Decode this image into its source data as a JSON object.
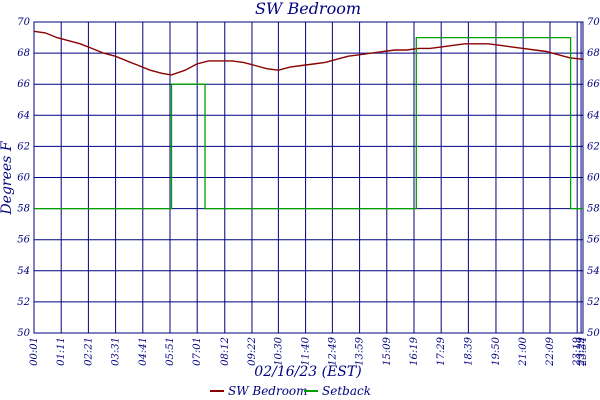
{
  "chart_data": {
    "type": "line",
    "title": "SW Bedroom",
    "xlabel": "02/16/23 (EST)",
    "ylabel": "Degrees F",
    "ylim": [
      50,
      70
    ],
    "yticks": [
      50,
      52,
      54,
      56,
      58,
      60,
      62,
      64,
      66,
      68,
      70
    ],
    "x_start": "00:01",
    "x_end": "23:34",
    "xticks": [
      "00:01",
      "01:11",
      "02:21",
      "03:31",
      "04:41",
      "05:51",
      "07:01",
      "08:12",
      "09:22",
      "10:30",
      "11:40",
      "12:49",
      "13:59",
      "15:09",
      "16:19",
      "17:29",
      "18:39",
      "19:50",
      "21:00",
      "22:09",
      "23:19",
      "23:29",
      "23:34"
    ],
    "grid": true,
    "legend_position": "bottom",
    "series": [
      {
        "name": "SW Bedroom",
        "color": "#8b0000",
        "points": [
          [
            "00:01",
            69.4
          ],
          [
            "00:30",
            69.3
          ],
          [
            "01:00",
            69.0
          ],
          [
            "01:30",
            68.8
          ],
          [
            "02:00",
            68.6
          ],
          [
            "02:30",
            68.3
          ],
          [
            "03:00",
            68.0
          ],
          [
            "03:30",
            67.8
          ],
          [
            "04:00",
            67.5
          ],
          [
            "04:30",
            67.2
          ],
          [
            "05:00",
            66.9
          ],
          [
            "05:30",
            66.7
          ],
          [
            "05:55",
            66.6
          ],
          [
            "06:30",
            66.9
          ],
          [
            "07:00",
            67.3
          ],
          [
            "07:30",
            67.5
          ],
          [
            "08:00",
            67.5
          ],
          [
            "08:30",
            67.5
          ],
          [
            "09:00",
            67.4
          ],
          [
            "09:30",
            67.2
          ],
          [
            "10:00",
            67.0
          ],
          [
            "10:30",
            66.9
          ],
          [
            "11:00",
            67.1
          ],
          [
            "11:30",
            67.2
          ],
          [
            "12:00",
            67.3
          ],
          [
            "12:30",
            67.4
          ],
          [
            "13:00",
            67.6
          ],
          [
            "13:30",
            67.8
          ],
          [
            "14:00",
            67.9
          ],
          [
            "14:30",
            68.0
          ],
          [
            "15:00",
            68.1
          ],
          [
            "15:30",
            68.2
          ],
          [
            "16:00",
            68.2
          ],
          [
            "16:30",
            68.3
          ],
          [
            "17:00",
            68.3
          ],
          [
            "17:30",
            68.4
          ],
          [
            "18:00",
            68.5
          ],
          [
            "18:30",
            68.6
          ],
          [
            "19:00",
            68.6
          ],
          [
            "19:30",
            68.6
          ],
          [
            "20:00",
            68.5
          ],
          [
            "20:30",
            68.4
          ],
          [
            "21:00",
            68.3
          ],
          [
            "21:30",
            68.2
          ],
          [
            "22:00",
            68.1
          ],
          [
            "22:30",
            67.9
          ],
          [
            "23:00",
            67.7
          ],
          [
            "23:34",
            67.6
          ]
        ]
      },
      {
        "name": "Setback",
        "color": "#00a000",
        "step": true,
        "points": [
          [
            "00:01",
            58
          ],
          [
            "05:55",
            58
          ],
          [
            "05:55",
            66
          ],
          [
            "07:21",
            66
          ],
          [
            "07:21",
            58
          ],
          [
            "16:25",
            58
          ],
          [
            "16:25",
            69
          ],
          [
            "23:02",
            69
          ],
          [
            "23:02",
            58
          ],
          [
            "23:34",
            58
          ]
        ]
      }
    ]
  }
}
